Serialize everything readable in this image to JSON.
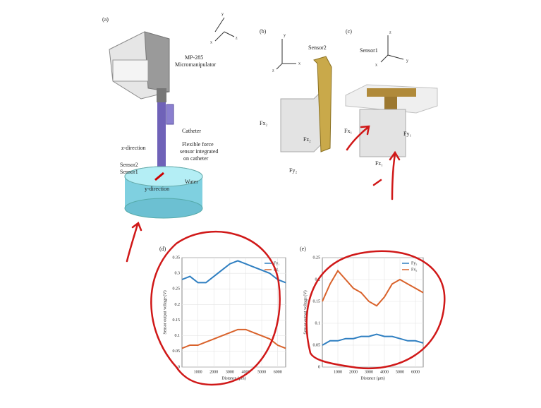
{
  "figure": {
    "a_label": "(a)",
    "a_axes": [
      "y",
      "x",
      "z"
    ],
    "micromanipulator": [
      "MP-285",
      "Micromanipulator"
    ],
    "catheter": "Catheter",
    "z_direction": "z-direction",
    "sensor_note": [
      "Flexible force",
      "sensor integrated",
      "on catheter"
    ],
    "sensor2": "Sensor2",
    "sensor1": "Sensor1",
    "y_direction": "y-direction",
    "water": "Water",
    "b_label": "(b)",
    "b_title": "Sensor2",
    "b_axes": [
      "y",
      "z",
      "x"
    ],
    "b_forces": [
      "Fx₂",
      "Fz₂",
      "Fy₂"
    ],
    "c_label": "(c)",
    "c_title": "Sensor1",
    "c_axes": [
      "z",
      "x",
      "y"
    ],
    "c_forces": [
      "Fx₁",
      "Fy₁",
      "Fz₁"
    ]
  },
  "chart_data": [
    {
      "type": "line",
      "label": "(d)",
      "x_label": "Distance (μm)",
      "y_label": "Sensor output voltage (V)",
      "x": [
        0,
        500,
        1000,
        1500,
        2000,
        2500,
        3000,
        3500,
        4000,
        4500,
        5000,
        5500,
        6000,
        6500
      ],
      "series": [
        {
          "name": "Fy₁",
          "color": "#2f7fc1",
          "values": [
            0.28,
            0.29,
            0.27,
            0.27,
            0.29,
            0.31,
            0.33,
            0.34,
            0.33,
            0.32,
            0.31,
            0.3,
            0.28,
            0.27
          ]
        },
        {
          "name": "Fz₁",
          "color": "#d9622b",
          "values": [
            0.06,
            0.07,
            0.07,
            0.08,
            0.09,
            0.1,
            0.11,
            0.12,
            0.12,
            0.11,
            0.1,
            0.09,
            0.07,
            0.06
          ]
        }
      ],
      "xlim": [
        0,
        6500
      ],
      "xticks": [
        1000,
        2000,
        3000,
        4000,
        5000,
        6000
      ],
      "ylim": [
        0,
        0.35
      ],
      "yticks": [
        0,
        0.05,
        0.1,
        0.15,
        0.2,
        0.25,
        0.3,
        0.35
      ],
      "grid": true
    },
    {
      "type": "line",
      "label": "(e)",
      "x_label": "Distance (μm)",
      "y_label": "Sensor output voltage (V)",
      "x": [
        0,
        500,
        1000,
        1500,
        2000,
        2500,
        3000,
        3500,
        4000,
        4500,
        5000,
        5500,
        6000,
        6500
      ],
      "series": [
        {
          "name": "Fy₂",
          "color": "#2f7fc1",
          "values": [
            0.05,
            0.06,
            0.06,
            0.065,
            0.065,
            0.07,
            0.07,
            0.075,
            0.07,
            0.07,
            0.065,
            0.06,
            0.06,
            0.055
          ]
        },
        {
          "name": "Fx₂",
          "color": "#d9622b",
          "values": [
            0.15,
            0.19,
            0.22,
            0.2,
            0.18,
            0.17,
            0.15,
            0.14,
            0.16,
            0.19,
            0.2,
            0.19,
            0.18,
            0.17
          ]
        }
      ],
      "xlim": [
        0,
        6500
      ],
      "xticks": [
        1000,
        2000,
        3000,
        4000,
        5000,
        6000
      ],
      "ylim": [
        0,
        0.25
      ],
      "yticks": [
        0,
        0.05,
        0.1,
        0.15,
        0.2,
        0.25
      ],
      "grid": true
    }
  ]
}
